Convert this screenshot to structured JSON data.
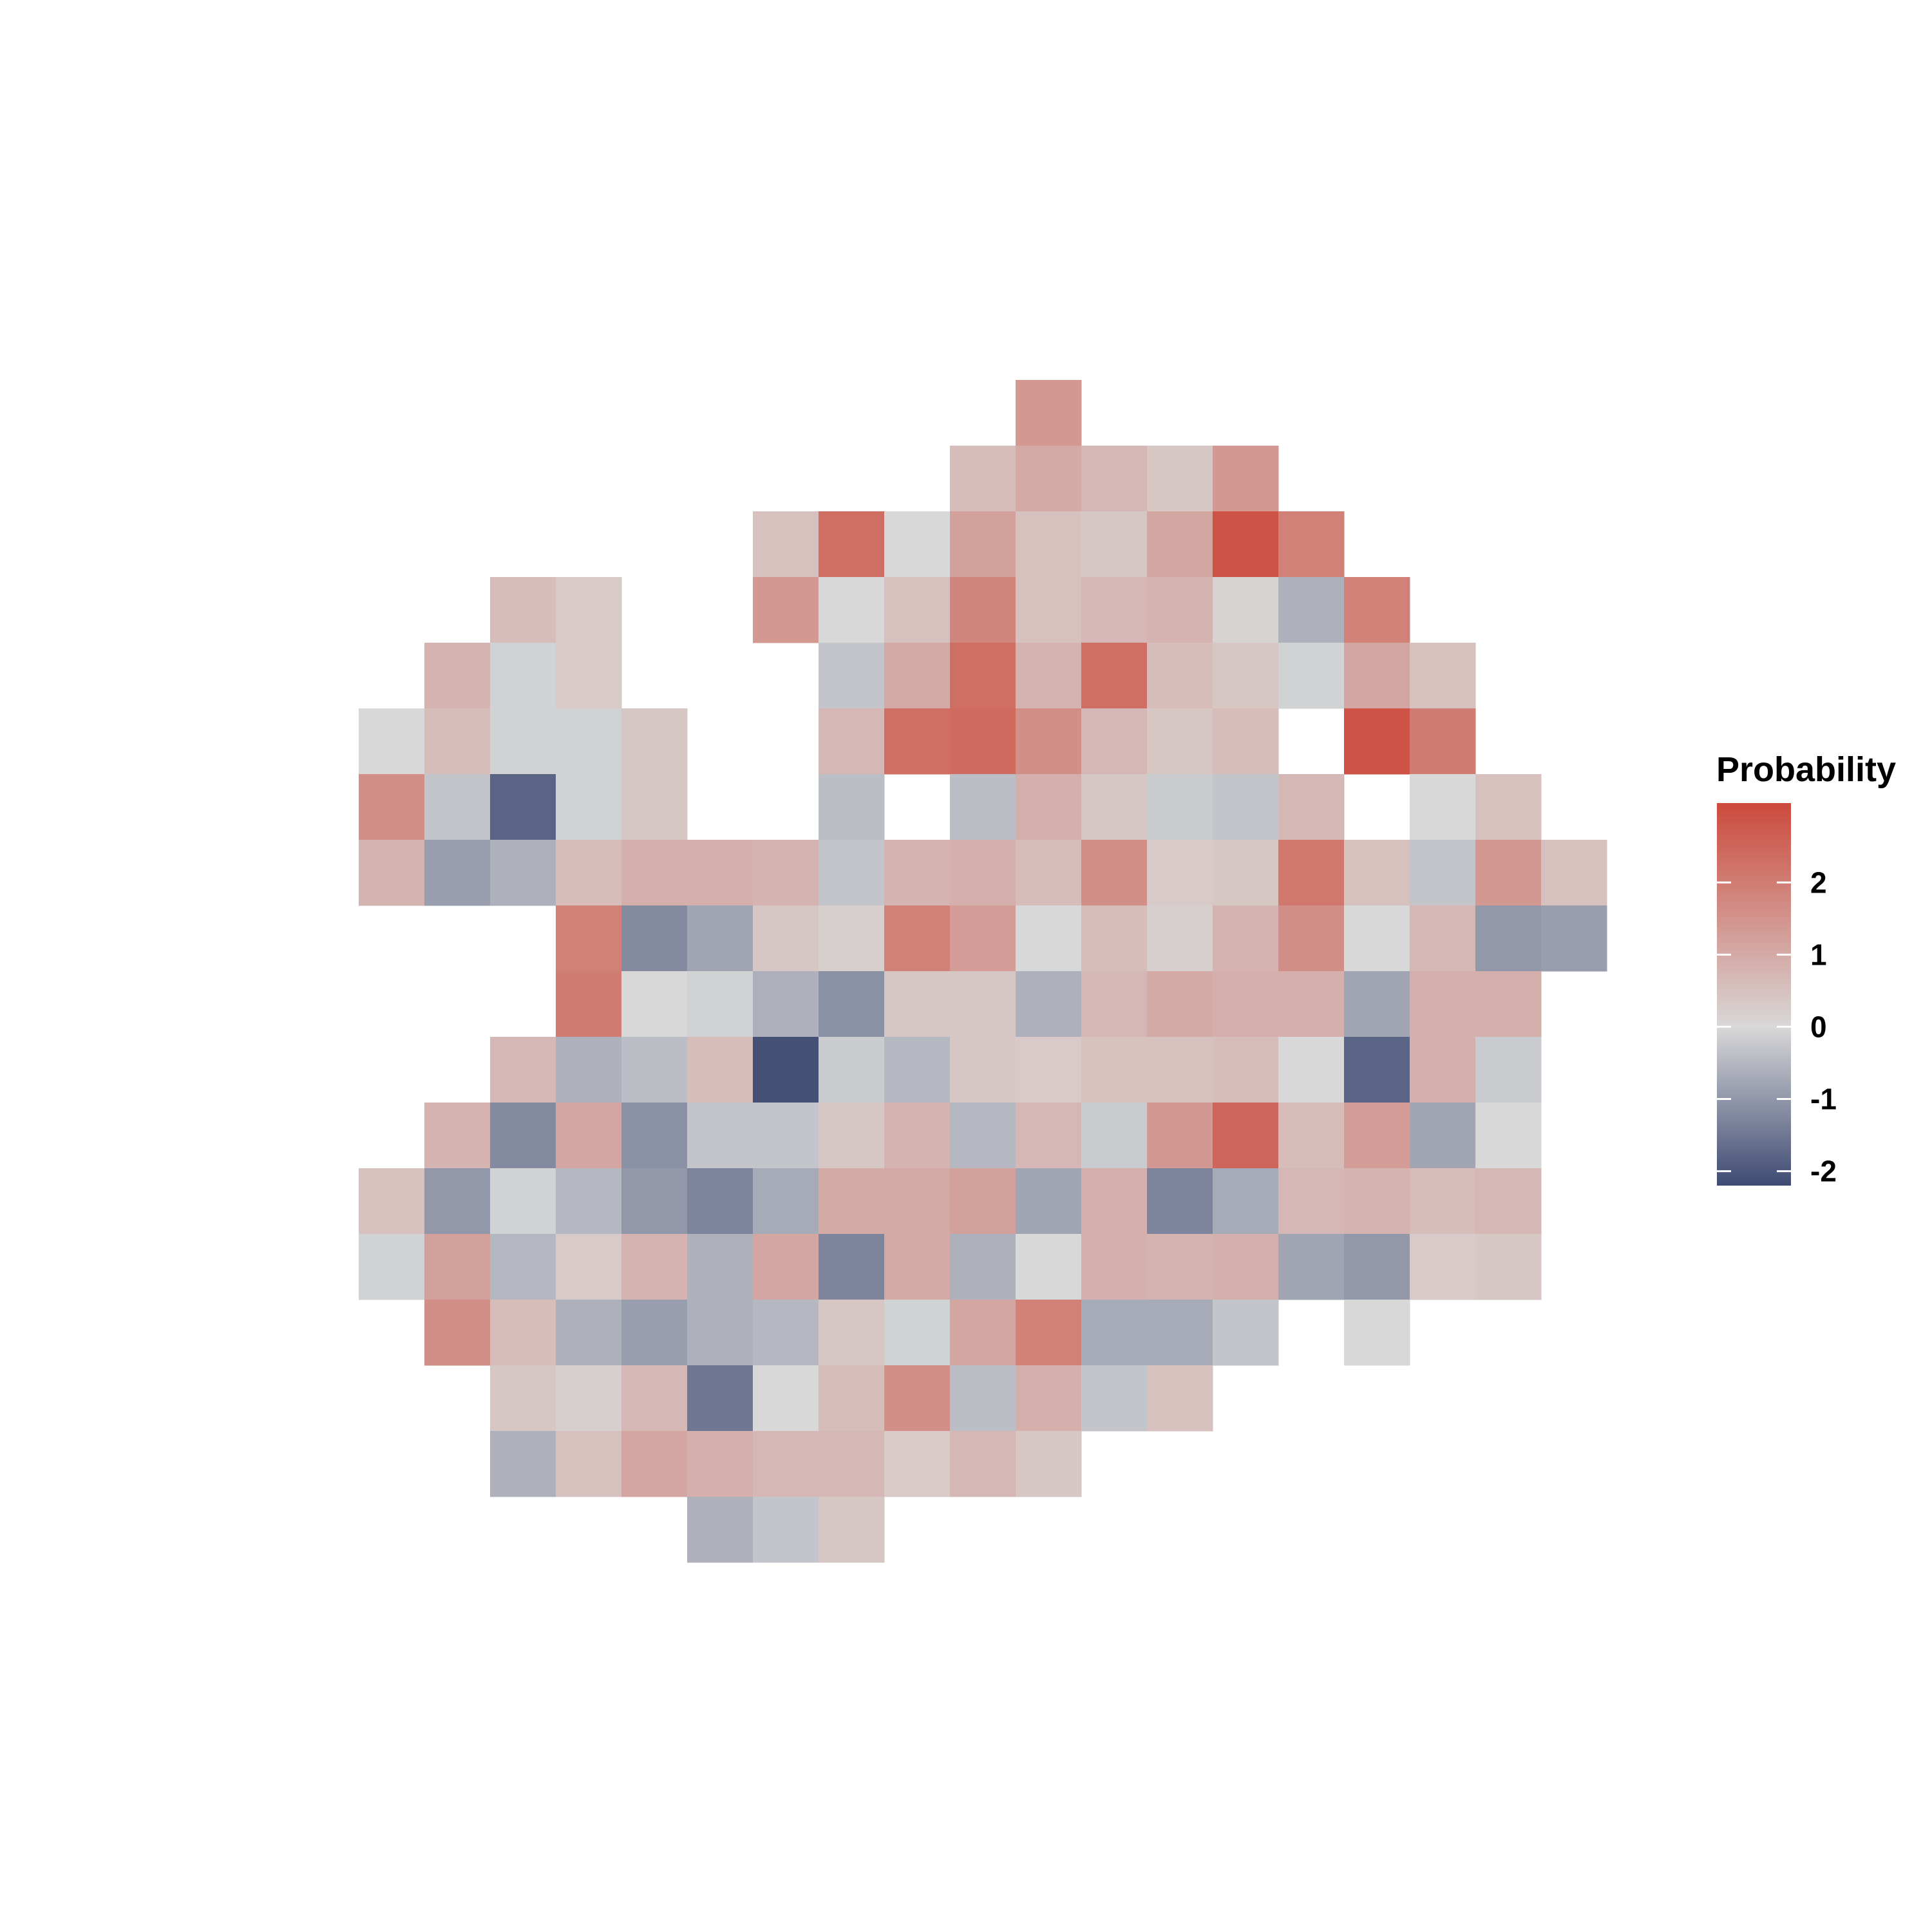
{
  "chart_data": {
    "type": "heatmap",
    "title": "",
    "xlabel": "",
    "ylabel": "",
    "grid": false,
    "legend": {
      "title": "Probability",
      "position": "right",
      "ticks": [
        2,
        1,
        0,
        -1,
        -2
      ],
      "range": [
        -2.2,
        3.1
      ],
      "low_color": "#3e4a72",
      "mid_color": "#d8d8d8",
      "high_color": "#cc4a3c"
    },
    "grid_size": {
      "cols": 19,
      "rows": 18
    },
    "cells": [
      {
        "col": 10,
        "row": 0,
        "value": 1.4
      },
      {
        "col": 9,
        "row": 1,
        "value": 0.6
      },
      {
        "col": 10,
        "row": 1,
        "value": 1.0
      },
      {
        "col": 11,
        "row": 1,
        "value": 0.7
      },
      {
        "col": 12,
        "row": 1,
        "value": 0.4
      },
      {
        "col": 13,
        "row": 1,
        "value": 1.4
      },
      {
        "col": 6,
        "row": 2,
        "value": 0.5
      },
      {
        "col": 7,
        "row": 2,
        "value": 2.3
      },
      {
        "col": 8,
        "row": 2,
        "value": 0.0
      },
      {
        "col": 9,
        "row": 2,
        "value": 1.2
      },
      {
        "col": 10,
        "row": 2,
        "value": 0.5
      },
      {
        "col": 11,
        "row": 2,
        "value": 0.4
      },
      {
        "col": 12,
        "row": 2,
        "value": 1.1
      },
      {
        "col": 13,
        "row": 2,
        "value": 2.9
      },
      {
        "col": 14,
        "row": 2,
        "value": 1.9
      },
      {
        "col": 2,
        "row": 3,
        "value": 0.6
      },
      {
        "col": 3,
        "row": 3,
        "value": 0.3
      },
      {
        "col": 6,
        "row": 3,
        "value": 1.4
      },
      {
        "col": 7,
        "row": 3,
        "value": 0.0
      },
      {
        "col": 8,
        "row": 3,
        "value": 0.5
      },
      {
        "col": 9,
        "row": 3,
        "value": 1.8
      },
      {
        "col": 10,
        "row": 3,
        "value": 0.5
      },
      {
        "col": 11,
        "row": 3,
        "value": 0.7
      },
      {
        "col": 12,
        "row": 3,
        "value": 0.8
      },
      {
        "col": 13,
        "row": 3,
        "value": 0.1
      },
      {
        "col": 14,
        "row": 3,
        "value": -0.6
      },
      {
        "col": 15,
        "row": 3,
        "value": 1.9
      },
      {
        "col": 1,
        "row": 4,
        "value": 0.8
      },
      {
        "col": 2,
        "row": 4,
        "value": -0.1
      },
      {
        "col": 3,
        "row": 4,
        "value": 0.3
      },
      {
        "col": 7,
        "row": 4,
        "value": -0.3
      },
      {
        "col": 8,
        "row": 4,
        "value": 1.0
      },
      {
        "col": 9,
        "row": 4,
        "value": 2.3
      },
      {
        "col": 10,
        "row": 4,
        "value": 0.8
      },
      {
        "col": 11,
        "row": 4,
        "value": 2.3
      },
      {
        "col": 12,
        "row": 4,
        "value": 0.6
      },
      {
        "col": 13,
        "row": 4,
        "value": 0.4
      },
      {
        "col": 14,
        "row": 4,
        "value": -0.1
      },
      {
        "col": 15,
        "row": 4,
        "value": 1.1
      },
      {
        "col": 16,
        "row": 4,
        "value": 0.5
      },
      {
        "col": 0,
        "row": 5,
        "value": 0.0
      },
      {
        "col": 1,
        "row": 5,
        "value": 0.6
      },
      {
        "col": 2,
        "row": 5,
        "value": -0.1
      },
      {
        "col": 3,
        "row": 5,
        "value": -0.1
      },
      {
        "col": 4,
        "row": 5,
        "value": 0.4
      },
      {
        "col": 7,
        "row": 5,
        "value": 0.7
      },
      {
        "col": 8,
        "row": 5,
        "value": 2.3
      },
      {
        "col": 9,
        "row": 5,
        "value": 2.4
      },
      {
        "col": 10,
        "row": 5,
        "value": 1.6
      },
      {
        "col": 11,
        "row": 5,
        "value": 0.7
      },
      {
        "col": 12,
        "row": 5,
        "value": 0.4
      },
      {
        "col": 13,
        "row": 5,
        "value": 0.6
      },
      {
        "col": 15,
        "row": 5,
        "value": 2.9
      },
      {
        "col": 16,
        "row": 5,
        "value": 2.0
      },
      {
        "col": 0,
        "row": 6,
        "value": 1.6
      },
      {
        "col": 1,
        "row": 6,
        "value": -0.3
      },
      {
        "col": 2,
        "row": 6,
        "value": -1.8
      },
      {
        "col": 3,
        "row": 6,
        "value": -0.1
      },
      {
        "col": 4,
        "row": 6,
        "value": 0.4
      },
      {
        "col": 7,
        "row": 6,
        "value": -0.4
      },
      {
        "col": 9,
        "row": 6,
        "value": -0.4
      },
      {
        "col": 10,
        "row": 6,
        "value": 0.9
      },
      {
        "col": 11,
        "row": 6,
        "value": 0.4
      },
      {
        "col": 12,
        "row": 6,
        "value": -0.2
      },
      {
        "col": 13,
        "row": 6,
        "value": -0.3
      },
      {
        "col": 14,
        "row": 6,
        "value": 0.7
      },
      {
        "col": 16,
        "row": 6,
        "value": 0.0
      },
      {
        "col": 17,
        "row": 6,
        "value": 0.5
      },
      {
        "col": 0,
        "row": 7,
        "value": 0.8
      },
      {
        "col": 1,
        "row": 7,
        "value": -0.9
      },
      {
        "col": 2,
        "row": 7,
        "value": -0.6
      },
      {
        "col": 3,
        "row": 7,
        "value": 0.6
      },
      {
        "col": 4,
        "row": 7,
        "value": 0.9
      },
      {
        "col": 5,
        "row": 7,
        "value": 0.9
      },
      {
        "col": 6,
        "row": 7,
        "value": 0.8
      },
      {
        "col": 7,
        "row": 7,
        "value": -0.3
      },
      {
        "col": 8,
        "row": 7,
        "value": 0.8
      },
      {
        "col": 9,
        "row": 7,
        "value": 0.9
      },
      {
        "col": 10,
        "row": 7,
        "value": 0.6
      },
      {
        "col": 11,
        "row": 7,
        "value": 1.6
      },
      {
        "col": 12,
        "row": 7,
        "value": 0.3
      },
      {
        "col": 13,
        "row": 7,
        "value": 0.4
      },
      {
        "col": 14,
        "row": 7,
        "value": 2.1
      },
      {
        "col": 15,
        "row": 7,
        "value": 0.5
      },
      {
        "col": 16,
        "row": 7,
        "value": -0.3
      },
      {
        "col": 17,
        "row": 7,
        "value": 1.4
      },
      {
        "col": 18,
        "row": 7,
        "value": 0.5
      },
      {
        "col": 3,
        "row": 8,
        "value": 1.9
      },
      {
        "col": 4,
        "row": 8,
        "value": -1.2
      },
      {
        "col": 5,
        "row": 8,
        "value": -0.8
      },
      {
        "col": 6,
        "row": 8,
        "value": 0.4
      },
      {
        "col": 7,
        "row": 8,
        "value": 0.2
      },
      {
        "col": 8,
        "row": 8,
        "value": 1.9
      },
      {
        "col": 9,
        "row": 8,
        "value": 1.3
      },
      {
        "col": 10,
        "row": 8,
        "value": 0.0
      },
      {
        "col": 11,
        "row": 8,
        "value": 0.6
      },
      {
        "col": 12,
        "row": 8,
        "value": 0.2
      },
      {
        "col": 13,
        "row": 8,
        "value": 0.8
      },
      {
        "col": 14,
        "row": 8,
        "value": 1.6
      },
      {
        "col": 15,
        "row": 8,
        "value": 0.0
      },
      {
        "col": 16,
        "row": 8,
        "value": 0.7
      },
      {
        "col": 17,
        "row": 8,
        "value": -1.0
      },
      {
        "col": 18,
        "row": 8,
        "value": -0.9
      },
      {
        "col": 3,
        "row": 9,
        "value": 2.0
      },
      {
        "col": 4,
        "row": 9,
        "value": 0.0
      },
      {
        "col": 5,
        "row": 9,
        "value": -0.1
      },
      {
        "col": 6,
        "row": 9,
        "value": -0.6
      },
      {
        "col": 7,
        "row": 9,
        "value": -1.1
      },
      {
        "col": 8,
        "row": 9,
        "value": 0.4
      },
      {
        "col": 9,
        "row": 9,
        "value": 0.4
      },
      {
        "col": 10,
        "row": 9,
        "value": -0.6
      },
      {
        "col": 11,
        "row": 9,
        "value": 0.7
      },
      {
        "col": 12,
        "row": 9,
        "value": 1.0
      },
      {
        "col": 13,
        "row": 9,
        "value": 0.9
      },
      {
        "col": 14,
        "row": 9,
        "value": 0.9
      },
      {
        "col": 15,
        "row": 9,
        "value": -0.8
      },
      {
        "col": 16,
        "row": 9,
        "value": 0.9
      },
      {
        "col": 17,
        "row": 9,
        "value": 0.9
      },
      {
        "col": 2,
        "row": 10,
        "value": 0.7
      },
      {
        "col": 3,
        "row": 10,
        "value": -0.6
      },
      {
        "col": 4,
        "row": 10,
        "value": -0.4
      },
      {
        "col": 5,
        "row": 10,
        "value": 0.6
      },
      {
        "col": 6,
        "row": 10,
        "value": -2.1
      },
      {
        "col": 7,
        "row": 10,
        "value": -0.2
      },
      {
        "col": 8,
        "row": 10,
        "value": -0.5
      },
      {
        "col": 9,
        "row": 10,
        "value": 0.4
      },
      {
        "col": 10,
        "row": 10,
        "value": 0.3
      },
      {
        "col": 11,
        "row": 10,
        "value": 0.5
      },
      {
        "col": 12,
        "row": 10,
        "value": 0.5
      },
      {
        "col": 13,
        "row": 10,
        "value": 0.6
      },
      {
        "col": 14,
        "row": 10,
        "value": 0.0
      },
      {
        "col": 15,
        "row": 10,
        "value": -1.8
      },
      {
        "col": 16,
        "row": 10,
        "value": 0.9
      },
      {
        "col": 17,
        "row": 10,
        "value": -0.2
      },
      {
        "col": 1,
        "row": 11,
        "value": 0.8
      },
      {
        "col": 2,
        "row": 11,
        "value": -1.2
      },
      {
        "col": 3,
        "row": 11,
        "value": 1.1
      },
      {
        "col": 4,
        "row": 11,
        "value": -1.1
      },
      {
        "col": 5,
        "row": 11,
        "value": -0.3
      },
      {
        "col": 6,
        "row": 11,
        "value": -0.3
      },
      {
        "col": 7,
        "row": 11,
        "value": 0.4
      },
      {
        "col": 8,
        "row": 11,
        "value": 0.8
      },
      {
        "col": 9,
        "row": 11,
        "value": -0.5
      },
      {
        "col": 10,
        "row": 11,
        "value": 0.7
      },
      {
        "col": 11,
        "row": 11,
        "value": -0.2
      },
      {
        "col": 12,
        "row": 11,
        "value": 1.4
      },
      {
        "col": 13,
        "row": 11,
        "value": 2.5
      },
      {
        "col": 14,
        "row": 11,
        "value": 0.6
      },
      {
        "col": 15,
        "row": 11,
        "value": 1.3
      },
      {
        "col": 16,
        "row": 11,
        "value": -0.8
      },
      {
        "col": 17,
        "row": 11,
        "value": 0.0
      },
      {
        "col": 0,
        "row": 12,
        "value": 0.5
      },
      {
        "col": 1,
        "row": 12,
        "value": -1.0
      },
      {
        "col": 2,
        "row": 12,
        "value": -0.1
      },
      {
        "col": 3,
        "row": 12,
        "value": -0.5
      },
      {
        "col": 4,
        "row": 12,
        "value": -1.0
      },
      {
        "col": 5,
        "row": 12,
        "value": -1.3
      },
      {
        "col": 6,
        "row": 12,
        "value": -0.7
      },
      {
        "col": 7,
        "row": 12,
        "value": 1.0
      },
      {
        "col": 8,
        "row": 12,
        "value": 1.0
      },
      {
        "col": 9,
        "row": 12,
        "value": 1.2
      },
      {
        "col": 10,
        "row": 12,
        "value": -0.8
      },
      {
        "col": 11,
        "row": 12,
        "value": 0.9
      },
      {
        "col": 12,
        "row": 12,
        "value": -1.3
      },
      {
        "col": 13,
        "row": 12,
        "value": -0.7
      },
      {
        "col": 14,
        "row": 12,
        "value": 0.7
      },
      {
        "col": 15,
        "row": 12,
        "value": 0.8
      },
      {
        "col": 16,
        "row": 12,
        "value": 0.6
      },
      {
        "col": 17,
        "row": 12,
        "value": 0.7
      },
      {
        "col": 0,
        "row": 13,
        "value": -0.1
      },
      {
        "col": 1,
        "row": 13,
        "value": 1.2
      },
      {
        "col": 2,
        "row": 13,
        "value": -0.5
      },
      {
        "col": 3,
        "row": 13,
        "value": 0.3
      },
      {
        "col": 4,
        "row": 13,
        "value": 0.8
      },
      {
        "col": 5,
        "row": 13,
        "value": -0.6
      },
      {
        "col": 6,
        "row": 13,
        "value": 1.1
      },
      {
        "col": 7,
        "row": 13,
        "value": -1.3
      },
      {
        "col": 8,
        "row": 13,
        "value": 1.0
      },
      {
        "col": 9,
        "row": 13,
        "value": -0.6
      },
      {
        "col": 10,
        "row": 13,
        "value": 0.0
      },
      {
        "col": 11,
        "row": 13,
        "value": 0.9
      },
      {
        "col": 12,
        "row": 13,
        "value": 0.8
      },
      {
        "col": 13,
        "row": 13,
        "value": 0.9
      },
      {
        "col": 14,
        "row": 13,
        "value": -0.8
      },
      {
        "col": 15,
        "row": 13,
        "value": -1.0
      },
      {
        "col": 16,
        "row": 13,
        "value": 0.3
      },
      {
        "col": 17,
        "row": 13,
        "value": 0.4
      },
      {
        "col": 1,
        "row": 14,
        "value": 1.6
      },
      {
        "col": 2,
        "row": 14,
        "value": 0.6
      },
      {
        "col": 3,
        "row": 14,
        "value": -0.6
      },
      {
        "col": 4,
        "row": 14,
        "value": -0.9
      },
      {
        "col": 5,
        "row": 14,
        "value": -0.6
      },
      {
        "col": 6,
        "row": 14,
        "value": -0.5
      },
      {
        "col": 7,
        "row": 14,
        "value": 0.4
      },
      {
        "col": 8,
        "row": 14,
        "value": -0.1
      },
      {
        "col": 9,
        "row": 14,
        "value": 1.1
      },
      {
        "col": 10,
        "row": 14,
        "value": 1.9
      },
      {
        "col": 11,
        "row": 14,
        "value": -0.7
      },
      {
        "col": 12,
        "row": 14,
        "value": -0.7
      },
      {
        "col": 13,
        "row": 14,
        "value": -0.3
      },
      {
        "col": 15,
        "row": 14,
        "value": 0.0
      },
      {
        "col": 2,
        "row": 15,
        "value": 0.4
      },
      {
        "col": 3,
        "row": 15,
        "value": 0.2
      },
      {
        "col": 4,
        "row": 15,
        "value": 0.7
      },
      {
        "col": 5,
        "row": 15,
        "value": -1.5
      },
      {
        "col": 6,
        "row": 15,
        "value": 0.0
      },
      {
        "col": 7,
        "row": 15,
        "value": 0.6
      },
      {
        "col": 8,
        "row": 15,
        "value": 1.6
      },
      {
        "col": 9,
        "row": 15,
        "value": -0.4
      },
      {
        "col": 10,
        "row": 15,
        "value": 0.9
      },
      {
        "col": 11,
        "row": 15,
        "value": -0.3
      },
      {
        "col": 12,
        "row": 15,
        "value": 0.5
      },
      {
        "col": 2,
        "row": 16,
        "value": -0.6
      },
      {
        "col": 3,
        "row": 16,
        "value": 0.5
      },
      {
        "col": 4,
        "row": 16,
        "value": 1.1
      },
      {
        "col": 5,
        "row": 16,
        "value": 0.9
      },
      {
        "col": 6,
        "row": 16,
        "value": 0.7
      },
      {
        "col": 7,
        "row": 16,
        "value": 0.7
      },
      {
        "col": 8,
        "row": 16,
        "value": 0.3
      },
      {
        "col": 9,
        "row": 16,
        "value": 0.7
      },
      {
        "col": 10,
        "row": 16,
        "value": 0.4
      },
      {
        "col": 5,
        "row": 17,
        "value": -0.6
      },
      {
        "col": 6,
        "row": 17,
        "value": -0.3
      },
      {
        "col": 7,
        "row": 17,
        "value": 0.4
      }
    ]
  }
}
